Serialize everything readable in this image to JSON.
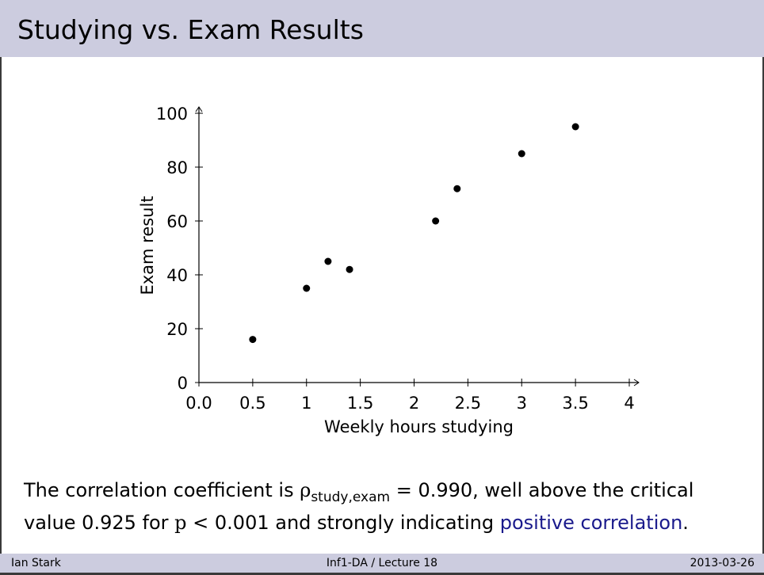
{
  "slide": {
    "title": "Studying vs. Exam Results"
  },
  "chart_data": {
    "type": "scatter",
    "title": "",
    "xlabel": "Weekly hours studying",
    "ylabel": "Exam result",
    "xlim": [
      0,
      4
    ],
    "ylim": [
      0,
      100
    ],
    "xticks": [
      0,
      0.5,
      1,
      1.5,
      2,
      2.5,
      3,
      3.5,
      4
    ],
    "xtick_labels": [
      "0.0",
      "0.5",
      "1",
      "1.5",
      "2",
      "2.5",
      "3",
      "3.5",
      "4"
    ],
    "yticks": [
      0,
      20,
      40,
      60,
      80,
      100
    ],
    "ytick_labels": [
      "0",
      "20",
      "40",
      "60",
      "80",
      "100"
    ],
    "grid": false,
    "marker_color": "#000000",
    "series": [
      {
        "points": [
          {
            "x": 0.5,
            "y": 16
          },
          {
            "x": 1.0,
            "y": 35
          },
          {
            "x": 1.2,
            "y": 45
          },
          {
            "x": 1.4,
            "y": 42
          },
          {
            "x": 2.2,
            "y": 60
          },
          {
            "x": 2.4,
            "y": 72
          },
          {
            "x": 3.0,
            "y": 85
          },
          {
            "x": 3.5,
            "y": 95
          }
        ]
      }
    ]
  },
  "caption": {
    "part1": "The correlation coefficient is ",
    "rho": "ρ",
    "rho_sub": "study,exam",
    "part2": " = 0.990, well above the critical",
    "part3": "value 0.925 for ",
    "p": "p",
    "part4": " < 0.001 and strongly indicating ",
    "highlight": "positive correlation",
    "end": ".",
    "accent_color": "#1a1a8c"
  },
  "footer": {
    "author": "Ian Stark",
    "course": "Inf1-DA / Lecture 18",
    "date": "2013-03-26"
  }
}
